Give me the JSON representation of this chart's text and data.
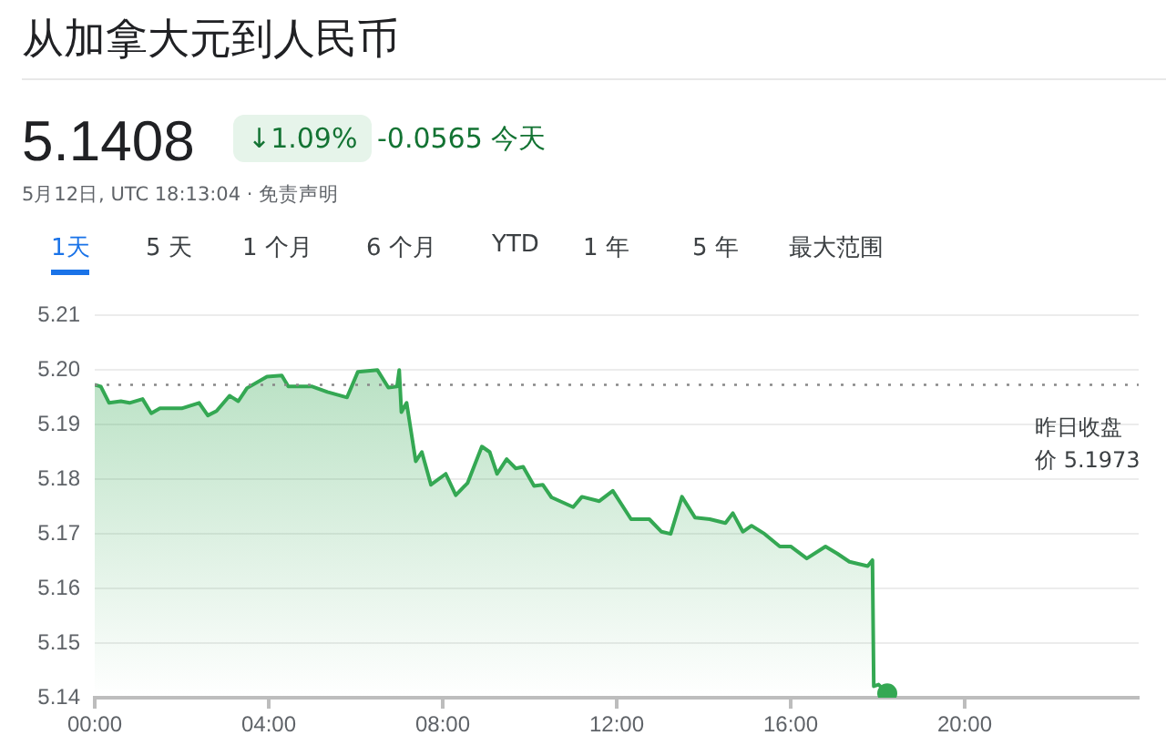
{
  "chart_data": {
    "type": "area",
    "title": "从加拿大元到人民币",
    "annotations": [
      "5.1408",
      "↓1.09%",
      "-0.0565 今天",
      "5月12日, UTC 18:13:04 · 免责声明",
      "1天",
      "5 天",
      "1 个月",
      "6 个月",
      "YTD",
      "1 年",
      "5 年",
      "最大范围"
    ],
    "series": [
      {
        "type": "area",
        "color": "#34a853",
        "marker": "none",
        "x": [
          0,
          0.14,
          0.33,
          0.6,
          0.8,
          1.1,
          1.3,
          1.5,
          2.0,
          2.4,
          2.6,
          2.8,
          3.1,
          3.3,
          3.5,
          3.96,
          4.3,
          4.45,
          5.0,
          5.35,
          5.8,
          6.05,
          6.5,
          6.75,
          6.95,
          7.0,
          7.05,
          7.17,
          7.38,
          7.52,
          7.73,
          8.07,
          8.3,
          8.57,
          8.9,
          9.08,
          9.25,
          9.47,
          9.68,
          9.85,
          10.1,
          10.3,
          10.5,
          11.0,
          11.2,
          11.6,
          11.91,
          12.33,
          12.75,
          13.03,
          13.24,
          13.5,
          13.8,
          14.14,
          14.5,
          14.67,
          14.9,
          15.1,
          15.4,
          15.75,
          16.0,
          16.37,
          16.8,
          17.07,
          17.35,
          17.77,
          17.88,
          17.91,
          18.02,
          18.22
        ],
        "values": [
          5.1973,
          5.197,
          5.194,
          5.1943,
          5.194,
          5.1947,
          5.1921,
          5.193,
          5.193,
          5.194,
          5.1917,
          5.1925,
          5.1953,
          5.1943,
          5.1967,
          5.1988,
          5.199,
          5.197,
          5.197,
          5.196,
          5.195,
          5.1997,
          5.2,
          5.1968,
          5.197,
          5.2,
          5.1923,
          5.194,
          5.1833,
          5.185,
          5.179,
          5.181,
          5.1771,
          5.1793,
          5.186,
          5.185,
          5.181,
          5.1837,
          5.182,
          5.1823,
          5.1788,
          5.179,
          5.1767,
          5.1749,
          5.1768,
          5.176,
          5.1779,
          5.1727,
          5.1727,
          5.1704,
          5.17,
          5.1768,
          5.173,
          5.1727,
          5.172,
          5.1738,
          5.1704,
          5.1715,
          5.17,
          5.1677,
          5.1677,
          5.1655,
          5.1677,
          5.1664,
          5.1649,
          5.1641,
          5.1652,
          5.1421,
          5.1424,
          5.1408
        ]
      },
      {
        "type": "scatter",
        "color": "#34a853",
        "marker": "circle",
        "x": [
          18.22
        ],
        "values": [
          5.1408
        ]
      }
    ],
    "xlim": [
      0,
      24
    ],
    "xticks": [
      {
        "value": 0,
        "label": "00:00"
      },
      {
        "value": 4,
        "label": "04:00"
      },
      {
        "value": 8,
        "label": "08:00"
      },
      {
        "value": 12,
        "label": "12:00"
      },
      {
        "value": 16,
        "label": "16:00"
      },
      {
        "value": 20,
        "label": "20:00"
      }
    ],
    "ylim": [
      5.14,
      5.21
    ],
    "yticks": [
      5.14,
      5.15,
      5.16,
      5.17,
      5.18,
      5.19,
      {
        "value": 5.2,
        "label": "5.20"
      },
      5.21
    ],
    "ref_lines": [
      {
        "axis": "y",
        "value": 5.1973,
        "label": "昨日收盘价 5.1973",
        "color": "#888888",
        "line_style": "dotted"
      }
    ],
    "grid": "y",
    "legend": false
  }
}
